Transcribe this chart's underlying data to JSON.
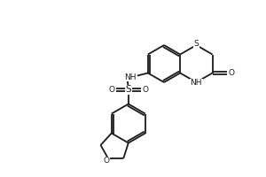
{
  "bg_color": "#ffffff",
  "line_color": "#1a1a1a",
  "line_width": 1.3,
  "font_size": 6.5,
  "atoms": {
    "S_thiazine": "S",
    "NH_thiazine": "NH",
    "O_keto": "O",
    "NH_sulfonamide": "NH",
    "S_sulfonamide": "S",
    "O_sul_left": "O",
    "O_sul_right": "O",
    "O_furan": "O"
  }
}
